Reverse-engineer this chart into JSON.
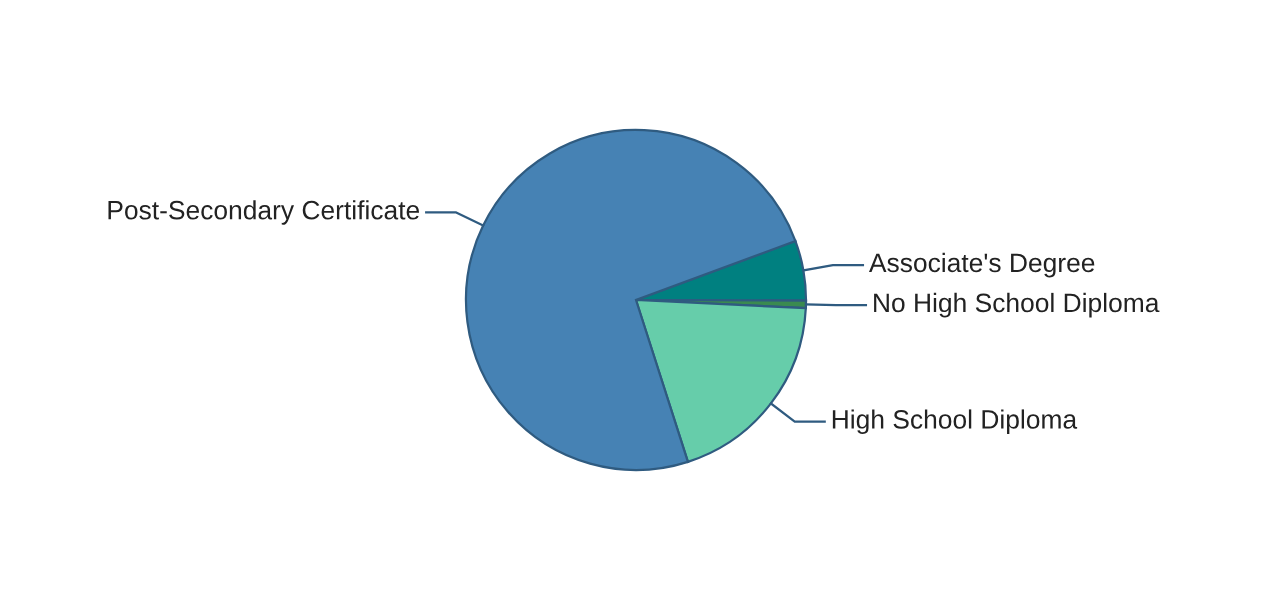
{
  "chart_data": {
    "type": "pie",
    "categories": [
      "Associate's Degree",
      "No High School Diploma",
      "High School Diploma",
      "Post-Secondary Certificate"
    ],
    "values": [
      5.7,
      0.7,
      19.3,
      74.3
    ],
    "colors": [
      "#008080",
      "#3a8a50",
      "#66cdaa",
      "#4682b4"
    ],
    "legend": false
  }
}
